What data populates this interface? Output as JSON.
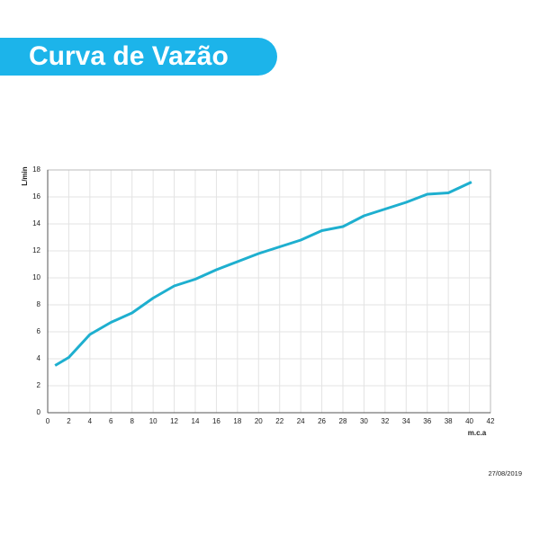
{
  "chart_data": {
    "type": "line",
    "title": "Curva de Vazão",
    "x_label": "m.c.a",
    "y_label": "L/min",
    "date": "27/08/2019",
    "x": [
      0.7,
      2,
      4,
      6,
      8,
      10,
      12,
      14,
      16,
      18,
      20,
      22,
      24,
      26,
      28,
      30,
      32,
      34,
      36,
      38,
      40.2
    ],
    "series": [
      {
        "color": "#1eafcf",
        "values": [
          3.5,
          4.1,
          5.8,
          6.7,
          7.4,
          8.5,
          9.4,
          9.9,
          10.6,
          11.2,
          11.8,
          12.3,
          12.8,
          13.5,
          13.8,
          14.6,
          15.1,
          15.6,
          16.2,
          16.3,
          17.1
        ]
      }
    ],
    "xlim": [
      0,
      42
    ],
    "xticks": [
      0,
      2,
      4,
      6,
      8,
      10,
      12,
      14,
      16,
      18,
      20,
      22,
      24,
      26,
      28,
      30,
      32,
      34,
      36,
      38,
      40,
      42
    ],
    "ylim": [
      0,
      18
    ],
    "yticks": [
      0,
      2,
      4,
      6,
      8,
      10,
      12,
      14,
      16,
      18
    ],
    "grid": true,
    "title_color": "#1cb4ea"
  }
}
